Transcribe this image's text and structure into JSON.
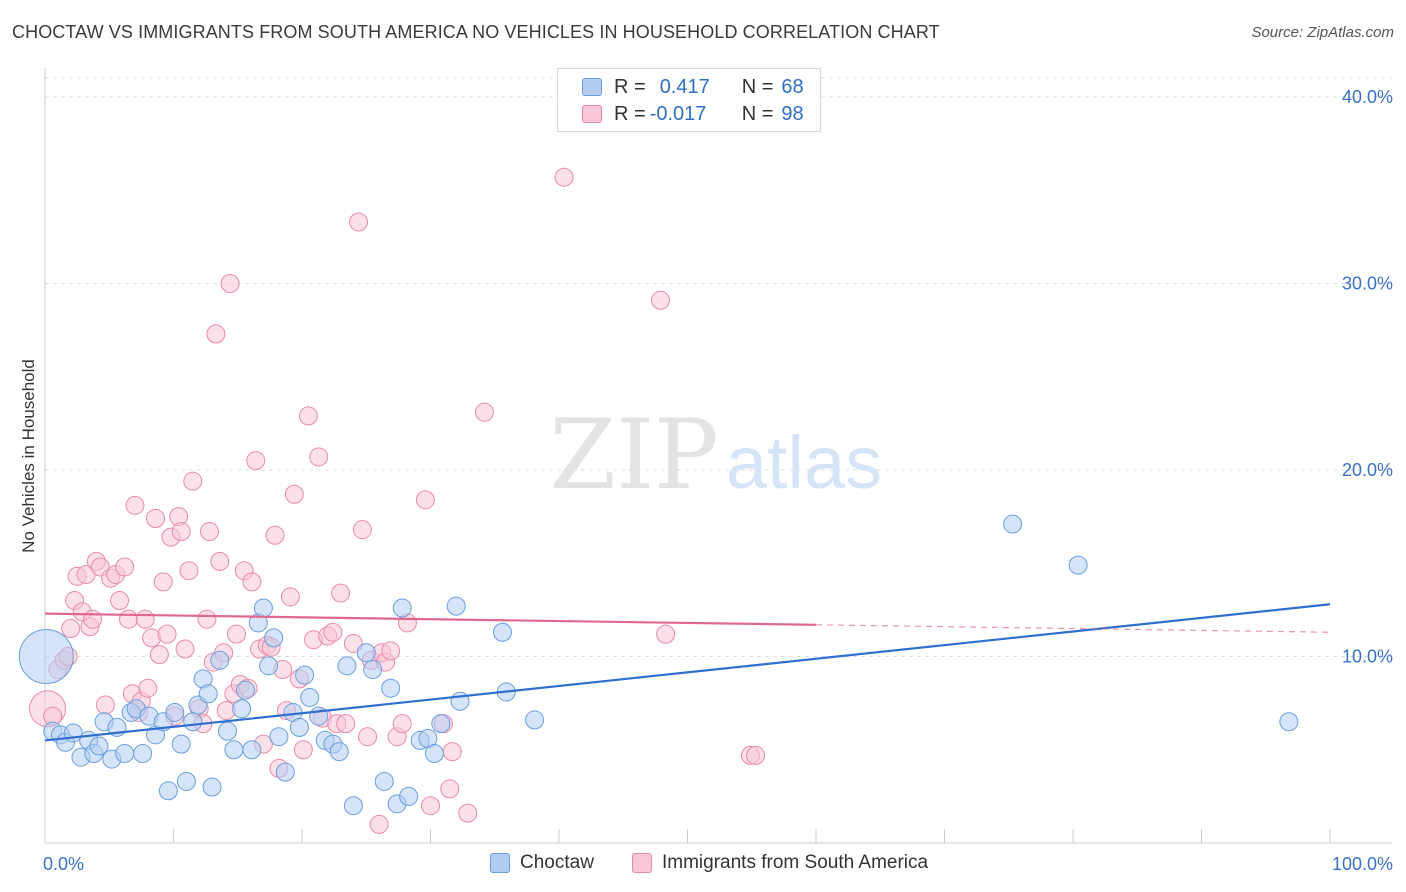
{
  "header": {
    "title": "CHOCTAW VS IMMIGRANTS FROM SOUTH AMERICA NO VEHICLES IN HOUSEHOLD CORRELATION CHART",
    "source": "Source: ZipAtlas.com"
  },
  "watermark": {
    "zip": "ZIP",
    "atlas": "atlas"
  },
  "stats": {
    "series1": {
      "r_label": "R =",
      "r": "0.417",
      "n_label": "N =",
      "n": "68"
    },
    "series2": {
      "r_label": "R =",
      "r": "-0.017",
      "n_label": "N =",
      "n": "98"
    }
  },
  "colors": {
    "series1_fill": "#b3cdf2",
    "series1_stroke": "#6a9ee0",
    "series1_line": "#2f6fd0",
    "series2_fill": "#f8c6d5",
    "series2_stroke": "#e98aa8",
    "series2_line": "#e06890",
    "tick_label": "#3a72c8",
    "grid": "#dddddd"
  },
  "chart_data": {
    "type": "scatter",
    "ylabel": "No Vehicles in Household",
    "xlim": [
      0,
      100
    ],
    "ylim": [
      0,
      42
    ],
    "x_tick_labels": [
      "0.0%",
      "100.0%"
    ],
    "y_ticks": [
      10,
      20,
      30,
      40
    ],
    "y_tick_labels": [
      "10.0%",
      "20.0%",
      "30.0%",
      "40.0%"
    ],
    "grid": "horizontal dashed",
    "series": [
      {
        "name": "Choctaw",
        "trend": {
          "x": [
            0,
            100
          ],
          "y": [
            5.5,
            12.8
          ]
        },
        "points": [
          [
            0.1,
            10.0,
            3
          ],
          [
            0.6,
            6.0,
            1
          ],
          [
            1.2,
            5.8,
            1
          ],
          [
            1.6,
            5.4,
            1
          ],
          [
            2.2,
            5.9,
            1
          ],
          [
            2.8,
            4.6,
            1
          ],
          [
            3.4,
            5.5,
            1
          ],
          [
            3.8,
            4.8,
            1
          ],
          [
            4.2,
            5.2,
            1
          ],
          [
            4.6,
            6.5,
            1
          ],
          [
            5.2,
            4.5,
            1
          ],
          [
            5.6,
            6.2,
            1
          ],
          [
            6.2,
            4.8,
            1
          ],
          [
            6.7,
            7.0,
            1
          ],
          [
            7.1,
            7.2,
            1
          ],
          [
            7.6,
            4.8,
            1
          ],
          [
            8.1,
            6.8,
            1
          ],
          [
            8.6,
            5.8,
            1
          ],
          [
            9.2,
            6.5,
            1
          ],
          [
            9.6,
            2.8,
            1
          ],
          [
            10.1,
            7.0,
            1
          ],
          [
            10.6,
            5.3,
            1
          ],
          [
            11.0,
            3.3,
            1
          ],
          [
            11.5,
            6.5,
            1
          ],
          [
            11.9,
            7.4,
            1
          ],
          [
            12.3,
            8.8,
            1
          ],
          [
            12.7,
            8.0,
            1
          ],
          [
            13.0,
            3.0,
            1
          ],
          [
            13.6,
            9.8,
            1
          ],
          [
            14.2,
            6.0,
            1
          ],
          [
            14.7,
            5.0,
            1
          ],
          [
            15.3,
            7.2,
            1
          ],
          [
            15.6,
            8.2,
            1
          ],
          [
            16.1,
            5.0,
            1
          ],
          [
            16.6,
            11.8,
            1
          ],
          [
            17.0,
            12.6,
            1
          ],
          [
            17.4,
            9.5,
            1
          ],
          [
            17.8,
            11.0,
            1
          ],
          [
            18.2,
            5.7,
            1
          ],
          [
            18.7,
            3.8,
            1
          ],
          [
            19.3,
            7.0,
            1
          ],
          [
            19.8,
            6.2,
            1
          ],
          [
            20.2,
            9.0,
            1
          ],
          [
            20.6,
            7.8,
            1
          ],
          [
            21.3,
            6.8,
            1
          ],
          [
            21.8,
            5.5,
            1
          ],
          [
            22.4,
            5.3,
            1
          ],
          [
            22.9,
            4.9,
            1
          ],
          [
            23.5,
            9.5,
            1
          ],
          [
            24.0,
            2.0,
            1
          ],
          [
            25.0,
            10.2,
            1
          ],
          [
            25.5,
            9.3,
            1
          ],
          [
            26.4,
            3.3,
            1
          ],
          [
            26.9,
            8.3,
            1
          ],
          [
            27.4,
            2.1,
            1
          ],
          [
            27.8,
            12.6,
            1
          ],
          [
            28.3,
            2.5,
            1
          ],
          [
            29.2,
            5.5,
            1
          ],
          [
            29.8,
            5.6,
            1
          ],
          [
            30.3,
            4.8,
            1
          ],
          [
            30.8,
            6.4,
            1
          ],
          [
            32.0,
            12.7,
            1
          ],
          [
            32.3,
            7.6,
            1
          ],
          [
            35.6,
            11.3,
            1
          ],
          [
            35.9,
            8.1,
            1
          ],
          [
            38.1,
            6.6,
            1
          ],
          [
            75.3,
            17.1,
            1
          ],
          [
            80.4,
            14.9,
            1
          ],
          [
            96.8,
            6.5,
            1
          ]
        ]
      },
      {
        "name": "Immigrants from South America",
        "trend": {
          "x": [
            0,
            60
          ],
          "y": [
            12.3,
            11.7
          ]
        },
        "trend_dashed": {
          "x": [
            60,
            100
          ],
          "y": [
            11.7,
            11.3
          ]
        },
        "points": [
          [
            0.2,
            7.2,
            2
          ],
          [
            0.6,
            6.8,
            1
          ],
          [
            1.0,
            9.3,
            1
          ],
          [
            1.5,
            9.8,
            1
          ],
          [
            1.8,
            10.0,
            1
          ],
          [
            2.0,
            11.5,
            1
          ],
          [
            2.3,
            13.0,
            1
          ],
          [
            2.5,
            14.3,
            1
          ],
          [
            2.9,
            12.4,
            1
          ],
          [
            3.2,
            14.4,
            1
          ],
          [
            3.5,
            11.6,
            1
          ],
          [
            3.7,
            12.0,
            1
          ],
          [
            4.0,
            15.1,
            1
          ],
          [
            4.3,
            14.8,
            1
          ],
          [
            4.7,
            7.4,
            1
          ],
          [
            5.1,
            14.2,
            1
          ],
          [
            5.5,
            14.4,
            1
          ],
          [
            5.8,
            13.0,
            1
          ],
          [
            6.2,
            14.8,
            1
          ],
          [
            6.5,
            12.0,
            1
          ],
          [
            6.8,
            8.0,
            1
          ],
          [
            7.0,
            18.1,
            1
          ],
          [
            7.3,
            7.0,
            1
          ],
          [
            7.5,
            7.6,
            1
          ],
          [
            7.8,
            12.0,
            1
          ],
          [
            8.0,
            8.3,
            1
          ],
          [
            8.3,
            11.0,
            1
          ],
          [
            8.6,
            17.4,
            1
          ],
          [
            8.9,
            10.1,
            1
          ],
          [
            9.2,
            14.0,
            1
          ],
          [
            9.5,
            11.2,
            1
          ],
          [
            9.8,
            16.4,
            1
          ],
          [
            10.1,
            6.8,
            1
          ],
          [
            10.4,
            17.5,
            1
          ],
          [
            10.6,
            16.7,
            1
          ],
          [
            10.9,
            10.4,
            1
          ],
          [
            11.2,
            14.6,
            1
          ],
          [
            11.5,
            19.4,
            1
          ],
          [
            12.0,
            7.2,
            1
          ],
          [
            12.3,
            6.4,
            1
          ],
          [
            12.6,
            12.0,
            1
          ],
          [
            12.8,
            16.7,
            1
          ],
          [
            13.1,
            9.7,
            1
          ],
          [
            13.3,
            27.3,
            1
          ],
          [
            13.6,
            15.1,
            1
          ],
          [
            13.9,
            10.2,
            1
          ],
          [
            14.1,
            7.1,
            1
          ],
          [
            14.4,
            30.0,
            1
          ],
          [
            14.7,
            8.0,
            1
          ],
          [
            14.9,
            11.2,
            1
          ],
          [
            15.2,
            8.5,
            1
          ],
          [
            15.5,
            14.6,
            1
          ],
          [
            15.8,
            8.3,
            1
          ],
          [
            16.1,
            14.0,
            1
          ],
          [
            16.4,
            20.5,
            1
          ],
          [
            16.7,
            10.4,
            1
          ],
          [
            17.0,
            5.3,
            1
          ],
          [
            17.3,
            10.6,
            1
          ],
          [
            17.6,
            10.5,
            1
          ],
          [
            17.9,
            16.5,
            1
          ],
          [
            18.2,
            4.0,
            1
          ],
          [
            18.5,
            9.3,
            1
          ],
          [
            18.8,
            7.1,
            1
          ],
          [
            19.1,
            13.2,
            1
          ],
          [
            19.4,
            18.7,
            1
          ],
          [
            19.8,
            8.8,
            1
          ],
          [
            20.1,
            5.0,
            1
          ],
          [
            20.5,
            22.9,
            1
          ],
          [
            20.9,
            10.9,
            1
          ],
          [
            21.3,
            20.7,
            1
          ],
          [
            21.6,
            6.7,
            1
          ],
          [
            22.0,
            11.1,
            1
          ],
          [
            22.4,
            11.3,
            1
          ],
          [
            22.7,
            6.4,
            1
          ],
          [
            23.0,
            13.4,
            1
          ],
          [
            23.4,
            6.4,
            1
          ],
          [
            24.0,
            10.7,
            1
          ],
          [
            24.4,
            33.3,
            1
          ],
          [
            24.7,
            16.8,
            1
          ],
          [
            25.1,
            5.7,
            1
          ],
          [
            25.4,
            9.8,
            1
          ],
          [
            26.0,
            1.0,
            1
          ],
          [
            26.2,
            10.2,
            1
          ],
          [
            26.5,
            9.7,
            1
          ],
          [
            26.9,
            10.3,
            1
          ],
          [
            27.4,
            5.7,
            1
          ],
          [
            27.8,
            6.4,
            1
          ],
          [
            28.2,
            11.8,
            1
          ],
          [
            29.6,
            18.4,
            1
          ],
          [
            30.0,
            2.0,
            1
          ],
          [
            31.0,
            6.4,
            1
          ],
          [
            31.5,
            2.9,
            1
          ],
          [
            31.7,
            4.9,
            1
          ],
          [
            32.9,
            1.6,
            1
          ],
          [
            34.2,
            23.1,
            1
          ],
          [
            40.4,
            35.7,
            1
          ],
          [
            47.9,
            29.1,
            1
          ],
          [
            48.3,
            11.2,
            1
          ],
          [
            54.9,
            4.7,
            1
          ],
          [
            55.3,
            4.7,
            1
          ]
        ]
      }
    ]
  }
}
